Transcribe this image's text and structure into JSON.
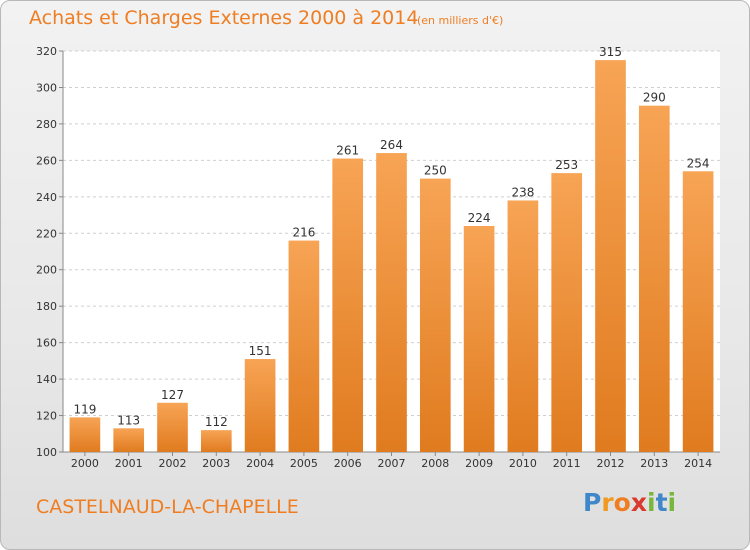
{
  "title": "Achats et Charges Externes 2000 à 2014",
  "subtitle": "(en milliers d'€)",
  "commune": "CASTELNAUD-LA-CHAPELLE",
  "logo_letters": [
    "P",
    "r",
    "o",
    "x",
    "i",
    "t",
    "i"
  ],
  "colors": {
    "accent": "#ef7d22",
    "bar_light": "#f7a455",
    "bar_dark": "#e07b1f",
    "grid": "#cfcfcf",
    "plot_bg": "#ffffff"
  },
  "chart_data": {
    "type": "bar",
    "categories": [
      "2000",
      "2001",
      "2002",
      "2003",
      "2004",
      "2005",
      "2006",
      "2007",
      "2008",
      "2009",
      "2010",
      "2011",
      "2012",
      "2013",
      "2014"
    ],
    "values": [
      119,
      113,
      127,
      112,
      151,
      216,
      261,
      264,
      250,
      224,
      238,
      253,
      315,
      290,
      254
    ],
    "ylim": [
      100,
      320
    ],
    "yticks": [
      100,
      120,
      140,
      160,
      180,
      200,
      220,
      240,
      260,
      280,
      300,
      320
    ],
    "grid": true,
    "data_labels": true
  }
}
